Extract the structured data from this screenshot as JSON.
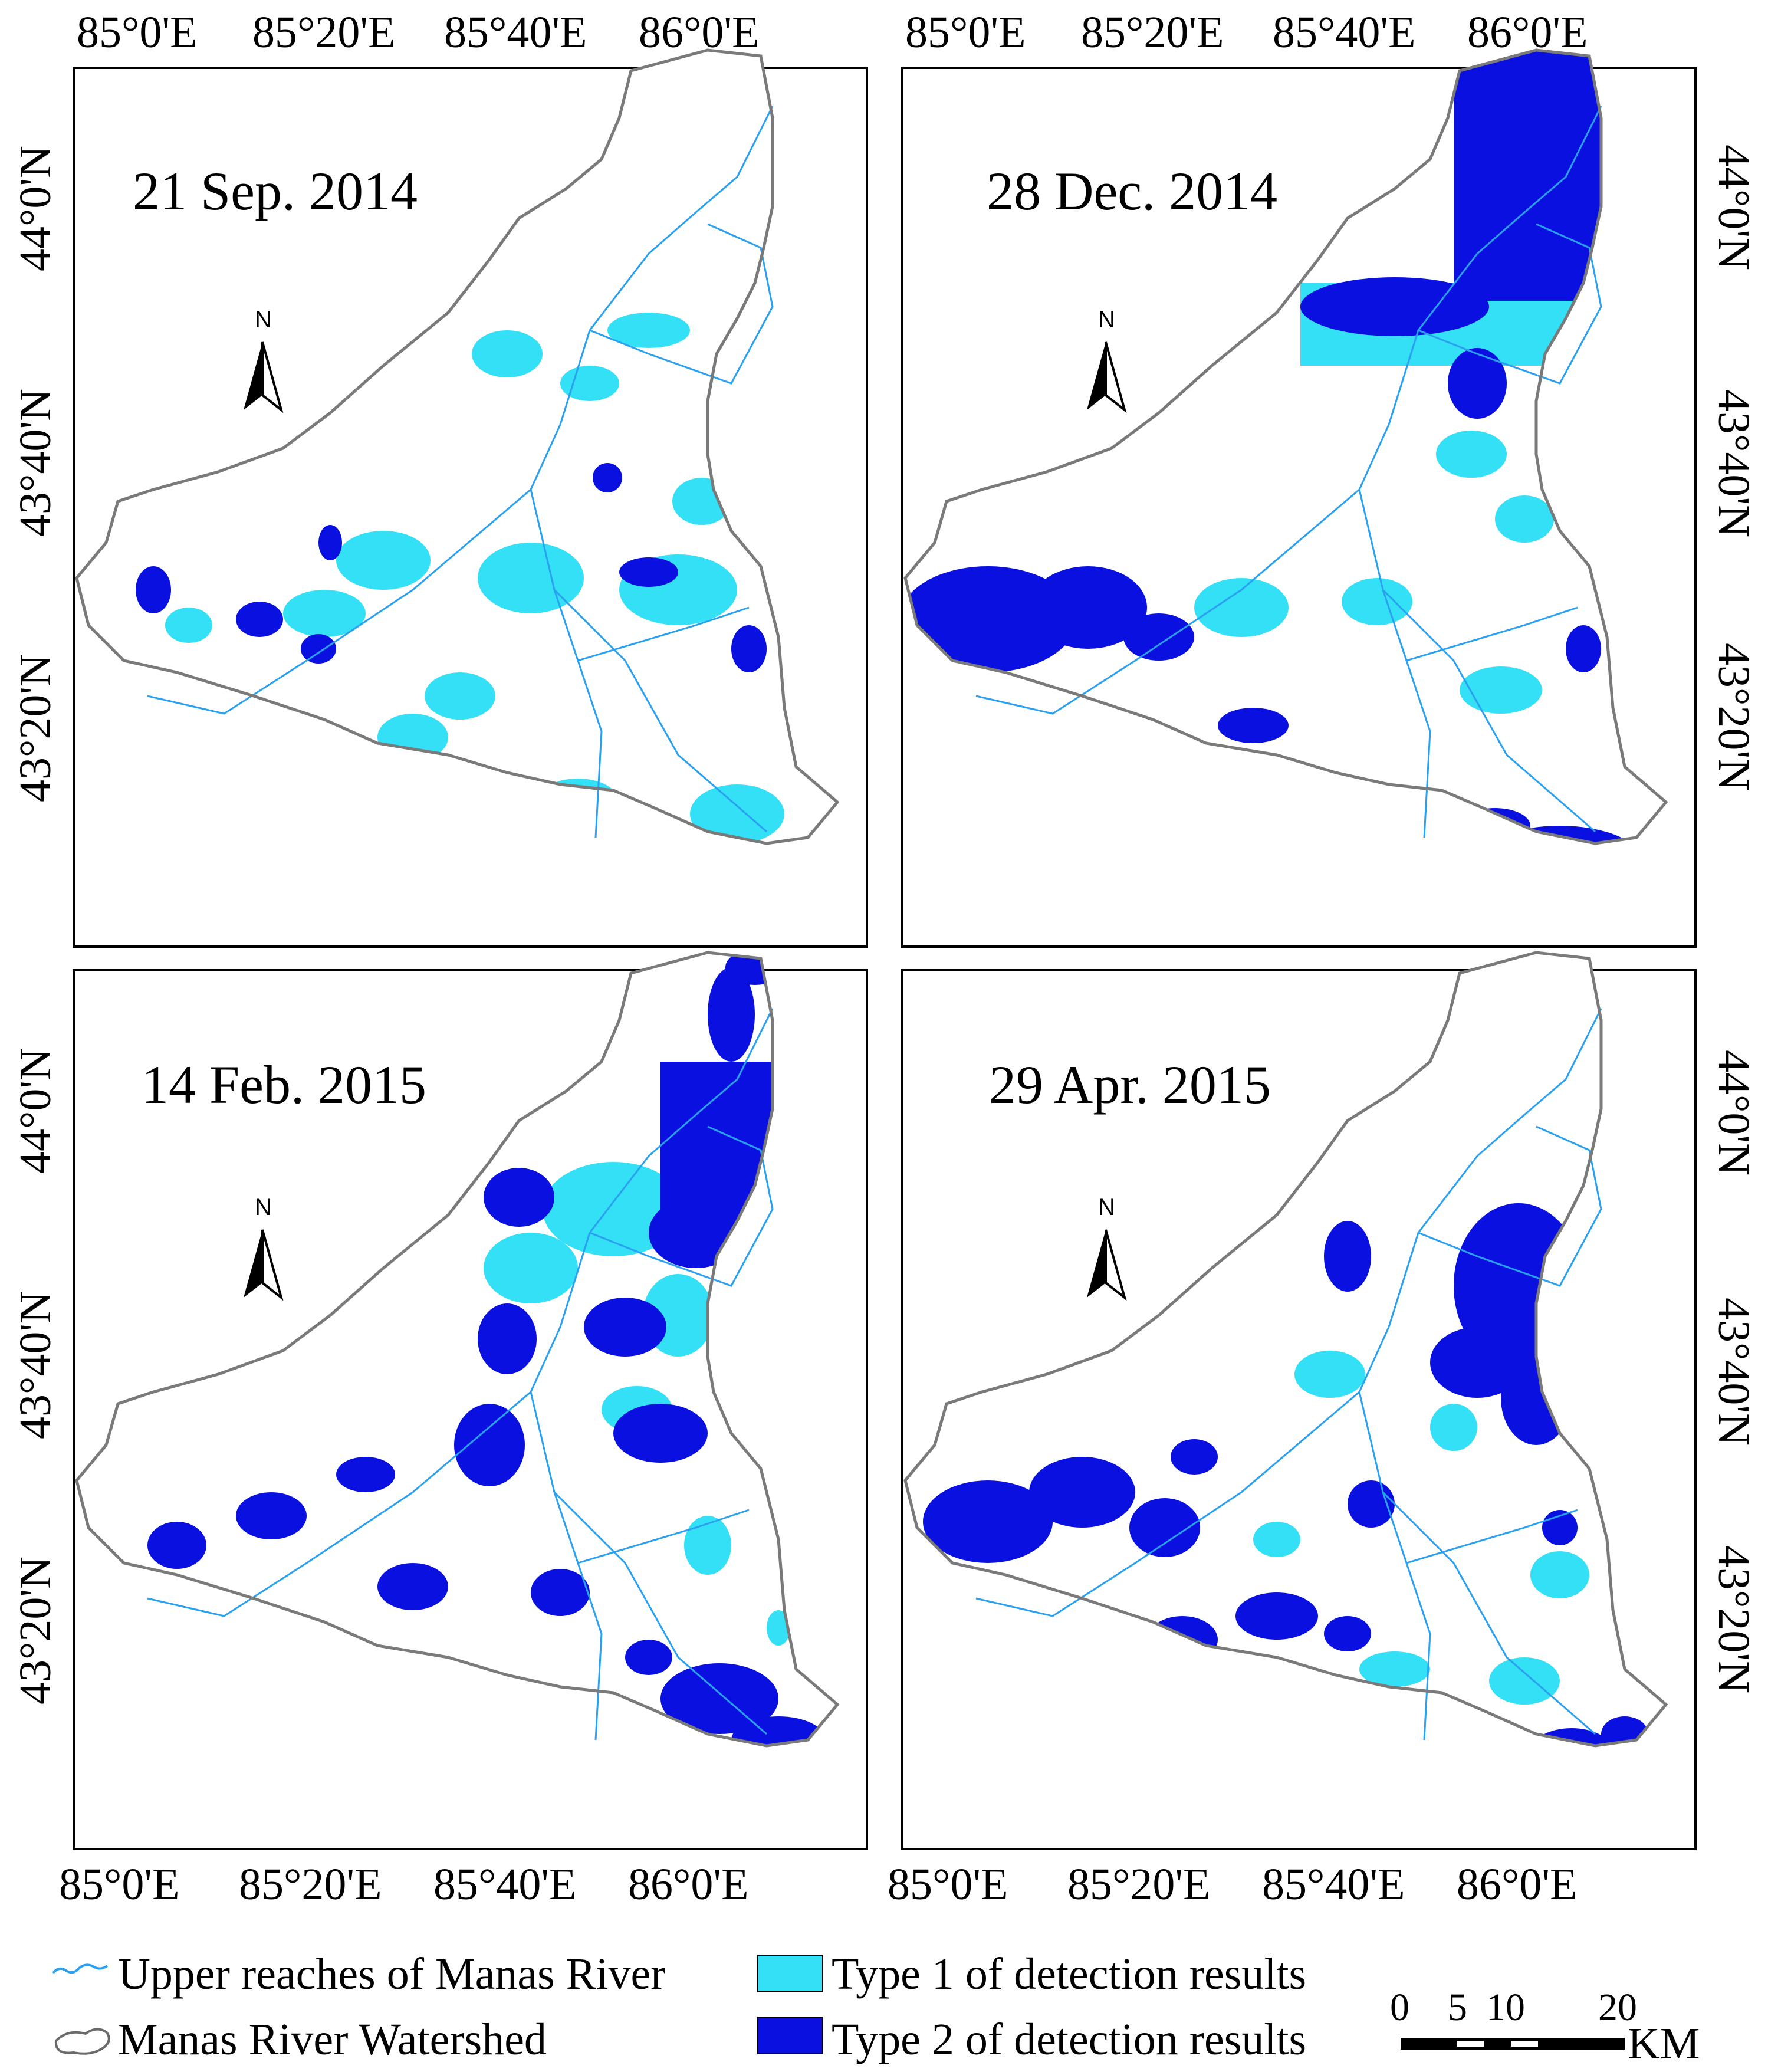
{
  "figure": {
    "panels": [
      {
        "date": "21 Sep. 2014",
        "north": "N"
      },
      {
        "date": "28 Dec. 2014",
        "north": "N"
      },
      {
        "date": "14 Feb. 2015",
        "north": "N"
      },
      {
        "date": "29 Apr. 2015",
        "north": "N"
      }
    ],
    "longitude_ticks": [
      "85°0'E",
      "85°20'E",
      "85°40'E",
      "86°0'E"
    ],
    "latitude_ticks": [
      "44°0'N",
      "43°40'N",
      "43°20'N"
    ],
    "legend": {
      "river": "Upper reaches of Manas River",
      "watershed": "Manas River Watershed",
      "type1": "Type 1 of detection results",
      "type2": "Type 2 of detection results"
    },
    "scale_bar": {
      "ticks": [
        "0",
        "5",
        "10",
        "20"
      ],
      "unit": "KM"
    },
    "colors": {
      "type1": "#33e0f5",
      "type2": "#0a10e0",
      "river": "#2aa0f0",
      "watershed_outline": "#7a7a7a",
      "frame": "#000000"
    }
  }
}
